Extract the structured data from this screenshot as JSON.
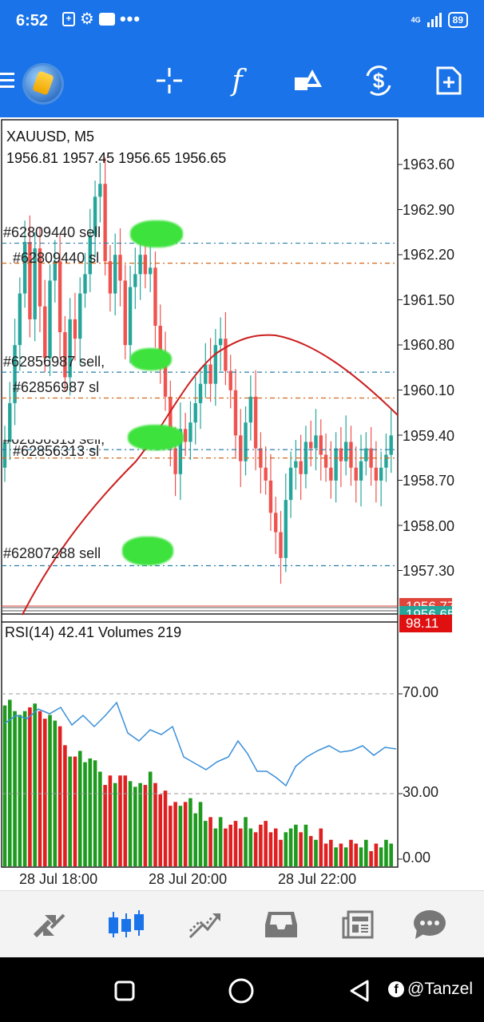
{
  "status_bar": {
    "time": "6:52",
    "network": "4G",
    "battery": "89",
    "icons": [
      "plus-box-icon",
      "gear-icon",
      "game-icon",
      "more-dots-icon"
    ]
  },
  "toolbar": {
    "icons": [
      "menu-icon",
      "app-logo",
      "crosshair-icon",
      "function-icon",
      "objects-icon",
      "trade-icon",
      "new-order-icon"
    ],
    "function_glyph": "f"
  },
  "chart": {
    "symbol": "XAUUSD, M5",
    "ohlc": "1956.81 1957.45 1956.65 1956.65",
    "price_axis": [
      "1963.60",
      "1962.90",
      "1962.20",
      "1961.50",
      "1960.80",
      "1960.10",
      "1959.40",
      "1958.70",
      "1958.00",
      "1957.30"
    ],
    "badges": {
      "ask_price": "1956.77",
      "bid_price": "1956.65",
      "indicator_value": "98.11"
    },
    "order_labels": [
      "#62809440 sell",
      "#62809440 sl",
      "#62856987 sell,",
      "#62856987 sl",
      "#62856313 sell,",
      "#62856313 sl",
      "#62807288 sell"
    ],
    "indicator_info": "RSI(14) 42.41 Volumes 219",
    "indicator_axis": [
      "70.00",
      "30.00",
      "0.00"
    ],
    "time_axis": [
      "28 Jul 18:00",
      "28 Jul 20:00",
      "28 Jul 22:00"
    ],
    "colors": {
      "bull": "#26a69a",
      "bear": "#ef5350",
      "moving_average": "#cc1f1f",
      "rsi": "#3a8fd9",
      "volume_up": "#1e9a1e",
      "volume_down": "#e02020"
    }
  },
  "bottom_nav": {
    "items": [
      "quotes-icon",
      "chart-icon",
      "trade-icon",
      "history-icon",
      "news-icon",
      "chat-icon"
    ],
    "active": "chart-icon"
  },
  "system_nav": {
    "watermark": "@Tanzel"
  }
}
